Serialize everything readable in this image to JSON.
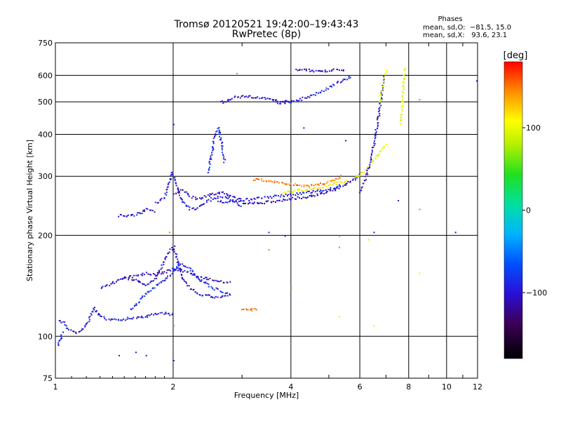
{
  "title": {
    "line1": "Tromsø 20120521 19:42:00–19:43:43",
    "line2": "RwPretec (8p)"
  },
  "phases": {
    "title": "Phases",
    "line0": "mean, sd,O:  −81.5, 15.0",
    "lineX": "mean, sd,X:   93.6, 23.1"
  },
  "colors": {
    "ordinary_trace": "#1e6bff",
    "extraordinary_trace": "#f2e600",
    "grid": "#000000"
  },
  "chart_data": {
    "type": "scatter",
    "xlabel": "Frequency [MHz]",
    "ylabel": "Stationary phase Virtual Height [km]",
    "xscale": "log",
    "yscale": "log",
    "xlim": [
      1,
      12
    ],
    "ylim": [
      75,
      750
    ],
    "xticks": [
      {
        "value": 1,
        "label": "1"
      },
      {
        "value": 2,
        "label": "2"
      },
      {
        "value": 4,
        "label": "4"
      },
      {
        "value": 6,
        "label": "6"
      },
      {
        "value": 8,
        "label": "8"
      },
      {
        "value": 10,
        "label": "10"
      },
      {
        "value": 12,
        "label": "12"
      }
    ],
    "yticks": [
      {
        "value": 75,
        "label": "75"
      },
      {
        "value": 100,
        "label": "100"
      },
      {
        "value": 200,
        "label": "200"
      },
      {
        "value": 300,
        "label": "300"
      },
      {
        "value": 400,
        "label": "400"
      },
      {
        "value": 500,
        "label": "500"
      },
      {
        "value": 600,
        "label": "600"
      },
      {
        "value": 750,
        "label": "750"
      }
    ],
    "grid": true,
    "colorbar": {
      "label": "[deg]",
      "min": -180,
      "max": 180,
      "ticks": [
        {
          "value": 100,
          "label": "100"
        },
        {
          "value": 0,
          "label": "0"
        },
        {
          "value": -100,
          "label": "−100"
        }
      ]
    },
    "traces": [
      {
        "x": [
          1.02,
          1.05,
          1.08,
          1.12,
          1.16,
          1.2,
          1.23,
          1.25,
          1.27,
          1.3,
          1.35,
          1.4,
          1.45,
          1.5,
          1.55,
          1.6,
          1.7,
          1.8,
          1.9,
          1.96,
          2.0
        ],
        "y": [
          112,
          110,
          105,
          103,
          104,
          110,
          116,
          122,
          118,
          115,
          113,
          112,
          113,
          113,
          114,
          114,
          115,
          117,
          118,
          117,
          117
        ],
        "phase": -95
      },
      {
        "x": [
          1.3,
          1.4,
          1.5,
          1.6,
          1.7,
          1.8,
          1.85,
          1.9,
          1.95,
          2.0,
          2.1,
          2.2,
          2.3,
          2.4,
          2.5,
          2.6,
          2.7,
          2.8
        ],
        "y": [
          140,
          145,
          150,
          148,
          142,
          150,
          160,
          170,
          180,
          185,
          150,
          140,
          135,
          133,
          132,
          131,
          132,
          133
        ],
        "phase": -100
      },
      {
        "x": [
          1.55,
          1.6,
          1.65,
          1.7,
          1.75,
          1.8,
          1.85,
          1.9,
          1.95,
          2.0,
          2.05,
          2.1,
          2.2,
          2.3,
          2.4,
          2.5,
          2.6,
          2.7,
          2.8
        ],
        "y": [
          120,
          125,
          130,
          135,
          138,
          142,
          145,
          148,
          152,
          158,
          162,
          165,
          160,
          150,
          145,
          140,
          138,
          136,
          135
        ],
        "phase": -85
      },
      {
        "x": [
          1.5,
          1.6,
          1.7,
          1.8,
          1.9,
          2.0,
          2.1,
          2.2,
          2.3,
          2.4,
          2.5,
          2.6,
          2.7,
          2.8
        ],
        "y": [
          150,
          152,
          155,
          153,
          156,
          160,
          158,
          155,
          152,
          150,
          148,
          147,
          146,
          145
        ],
        "phase": -110
      },
      {
        "x": [
          1.45,
          1.5,
          1.55,
          1.6,
          1.65,
          1.7,
          1.75,
          1.8
        ],
        "y": [
          230,
          229,
          229,
          232,
          235,
          240,
          238,
          236
        ],
        "phase": -100
      },
      {
        "x": [
          1.8,
          1.9,
          1.95,
          1.98,
          2.0,
          2.05,
          2.1,
          2.2,
          2.3,
          2.4,
          2.5,
          2.6,
          2.7,
          2.8,
          2.9,
          3.0
        ],
        "y": [
          250,
          262,
          290,
          310,
          300,
          275,
          255,
          240,
          242,
          250,
          258,
          262,
          262,
          258,
          250,
          245
        ],
        "phase": -95
      },
      {
        "x": [
          2.0,
          2.05,
          2.1,
          2.15,
          2.2,
          2.3,
          2.4,
          2.5,
          2.6,
          2.7,
          2.8,
          2.9,
          3.0
        ],
        "y": [
          265,
          270,
          275,
          270,
          262,
          258,
          262,
          266,
          270,
          268,
          262,
          258,
          255
        ],
        "phase": -110
      },
      {
        "x": [
          2.45,
          2.5,
          2.55,
          2.6,
          2.65,
          2.7
        ],
        "y": [
          310,
          350,
          400,
          420,
          380,
          330
        ],
        "phase": -90
      },
      {
        "x": [
          2.65,
          2.7,
          2.75,
          2.8,
          2.9,
          3.0,
          3.2,
          3.4,
          3.6,
          3.8,
          4.0
        ],
        "y": [
          505,
          500,
          505,
          510,
          520,
          520,
          520,
          515,
          510,
          505,
          503
        ],
        "phase": -105
      },
      {
        "x": [
          3.6,
          3.8,
          4.0,
          4.2,
          4.4,
          4.6,
          4.8,
          5.0,
          5.2,
          5.4,
          5.6,
          5.7
        ],
        "y": [
          500,
          500,
          503,
          510,
          520,
          530,
          542,
          556,
          570,
          582,
          592,
          600
        ],
        "phase": -95
      },
      {
        "x": [
          4.1,
          4.3,
          4.5,
          4.7,
          4.9,
          5.1,
          5.3,
          5.5
        ],
        "y": [
          625,
          625,
          623,
          622,
          622,
          624,
          626,
          628
        ],
        "phase": -110
      },
      {
        "x": [
          3.0,
          3.2,
          3.4,
          3.6,
          3.8,
          4.0,
          4.2,
          4.4,
          4.6,
          4.8,
          5.0,
          5.2,
          5.4,
          5.6,
          5.8,
          6.0
        ],
        "y": [
          250,
          251,
          252,
          254,
          256,
          258,
          260,
          262,
          265,
          268,
          272,
          276,
          281,
          288,
          296,
          305
        ],
        "phase": -110
      },
      {
        "x": [
          2.6,
          2.8,
          3.0,
          3.2,
          3.4,
          3.6,
          3.8,
          4.0,
          4.2,
          4.4,
          4.6,
          4.8,
          5.0,
          5.2,
          5.4
        ],
        "y": [
          252,
          254,
          256,
          258,
          260,
          262,
          264,
          266,
          268,
          270,
          272,
          274,
          277,
          280,
          284
        ],
        "phase": -95
      },
      {
        "x": [
          3.2,
          3.4,
          3.6,
          3.8,
          4.0,
          4.2,
          4.4,
          4.6,
          4.8,
          5.0,
          5.2,
          5.4
        ],
        "y": [
          295,
          293,
          290,
          287,
          285,
          283,
          282,
          283,
          286,
          290,
          296,
          302
        ],
        "phase": 150
      },
      {
        "x": [
          3.8,
          4.0,
          4.2,
          4.4,
          4.6,
          4.8,
          5.0,
          5.2,
          5.4,
          5.6
        ],
        "y": [
          270,
          272,
          274,
          276,
          278,
          280,
          283,
          286,
          290,
          294
        ],
        "phase": 110
      },
      {
        "x": [
          5.8,
          6.0,
          6.2,
          6.4,
          6.6,
          6.8,
          7.0
        ],
        "y": [
          300,
          305,
          315,
          330,
          345,
          360,
          375
        ],
        "phase": 95
      },
      {
        "x": [
          6.0,
          6.1,
          6.2,
          6.3,
          6.4,
          6.5,
          6.6,
          6.7,
          6.8,
          6.9
        ],
        "y": [
          270,
          285,
          300,
          320,
          345,
          380,
          420,
          470,
          530,
          600
        ],
        "phase": -105
      },
      {
        "x": [
          6.75,
          6.8,
          6.85,
          6.9,
          6.95,
          7.0
        ],
        "y": [
          500,
          530,
          560,
          590,
          610,
          630
        ],
        "phase": 95
      },
      {
        "x": [
          7.6,
          7.65,
          7.7,
          7.75,
          7.8
        ],
        "y": [
          430,
          470,
          520,
          580,
          640
        ],
        "phase": 95
      },
      {
        "x": [
          3.0,
          3.1,
          3.2,
          3.3
        ],
        "y": [
          121,
          120,
          121,
          122
        ],
        "phase": 150
      },
      {
        "x": [
          1.01,
          1.02,
          1.03,
          1.04
        ],
        "y": [
          94,
          97,
          100,
          104
        ],
        "phase": -100
      }
    ],
    "scatter_points": [
      {
        "x": 2.0,
        "y": 430,
        "phase": -100
      },
      {
        "x": 2.9,
        "y": 610,
        "phase": 150
      },
      {
        "x": 3.5,
        "y": 205,
        "phase": -100
      },
      {
        "x": 3.85,
        "y": 200,
        "phase": -110
      },
      {
        "x": 4.3,
        "y": 420,
        "phase": -100
      },
      {
        "x": 5.3,
        "y": 200,
        "phase": 150
      },
      {
        "x": 5.3,
        "y": 185,
        "phase": 150
      },
      {
        "x": 5.5,
        "y": 385,
        "phase": -100
      },
      {
        "x": 6.3,
        "y": 195,
        "phase": 95
      },
      {
        "x": 6.5,
        "y": 205,
        "phase": -100
      },
      {
        "x": 7.5,
        "y": 255,
        "phase": -100
      },
      {
        "x": 8.5,
        "y": 240,
        "phase": 150
      },
      {
        "x": 8.5,
        "y": 155,
        "phase": 95
      },
      {
        "x": 8.5,
        "y": 510,
        "phase": 150
      },
      {
        "x": 10.5,
        "y": 205,
        "phase": -100
      },
      {
        "x": 11.9,
        "y": 580,
        "phase": -100
      },
      {
        "x": 6.5,
        "y": 108,
        "phase": 95
      },
      {
        "x": 5.3,
        "y": 115,
        "phase": 95
      },
      {
        "x": 1.6,
        "y": 90,
        "phase": -100
      },
      {
        "x": 1.7,
        "y": 88,
        "phase": -100
      },
      {
        "x": 1.45,
        "y": 88,
        "phase": -100
      },
      {
        "x": 2.0,
        "y": 85,
        "phase": -100
      },
      {
        "x": 1.95,
        "y": 205,
        "phase": 150
      },
      {
        "x": 2.0,
        "y": 108,
        "phase": 150
      },
      {
        "x": 4.0,
        "y": 140,
        "phase": 60
      },
      {
        "x": 3.5,
        "y": 182,
        "phase": 150
      }
    ]
  }
}
